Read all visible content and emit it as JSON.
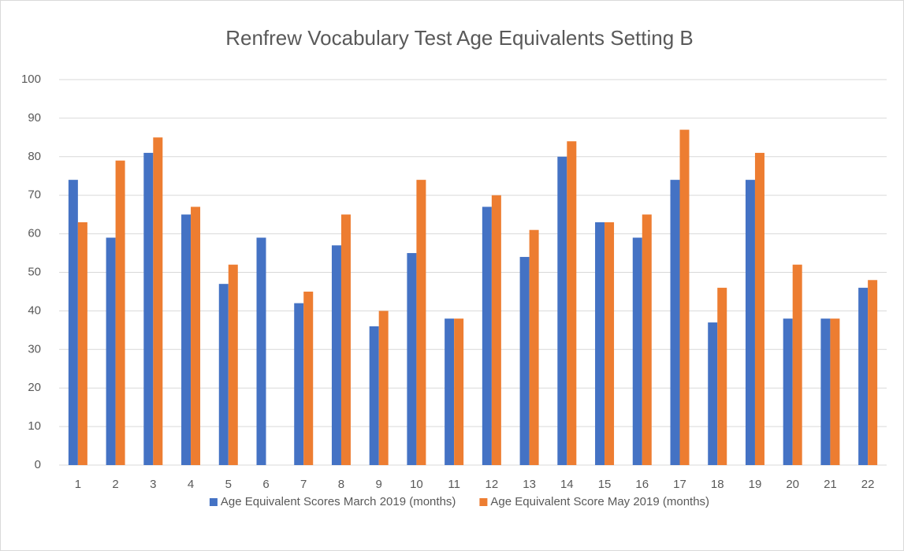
{
  "chart_data": {
    "type": "bar",
    "title": "Renfrew Vocabulary Test Age Equivalents Setting B",
    "categories": [
      "1",
      "2",
      "3",
      "4",
      "5",
      "6",
      "7",
      "8",
      "9",
      "10",
      "11",
      "12",
      "13",
      "14",
      "15",
      "16",
      "17",
      "18",
      "19",
      "20",
      "21",
      "22"
    ],
    "series": [
      {
        "name": "Age Equivalent Scores March 2019 (months)",
        "color": "#4472c4",
        "values": [
          74,
          59,
          81,
          65,
          47,
          59,
          42,
          57,
          36,
          55,
          38,
          67,
          54,
          80,
          63,
          59,
          74,
          37,
          74,
          38,
          38,
          46
        ]
      },
      {
        "name": "Age Equivalent Score May 2019 (months)",
        "color": "#ed7d31",
        "values": [
          63,
          79,
          85,
          67,
          52,
          null,
          45,
          65,
          40,
          74,
          38,
          70,
          61,
          84,
          63,
          65,
          87,
          46,
          81,
          52,
          38,
          48
        ]
      }
    ],
    "ylim": [
      0,
      100
    ],
    "yticks": [
      0,
      10,
      20,
      30,
      40,
      50,
      60,
      70,
      80,
      90,
      100
    ],
    "grid": true,
    "legend": "bottom"
  }
}
